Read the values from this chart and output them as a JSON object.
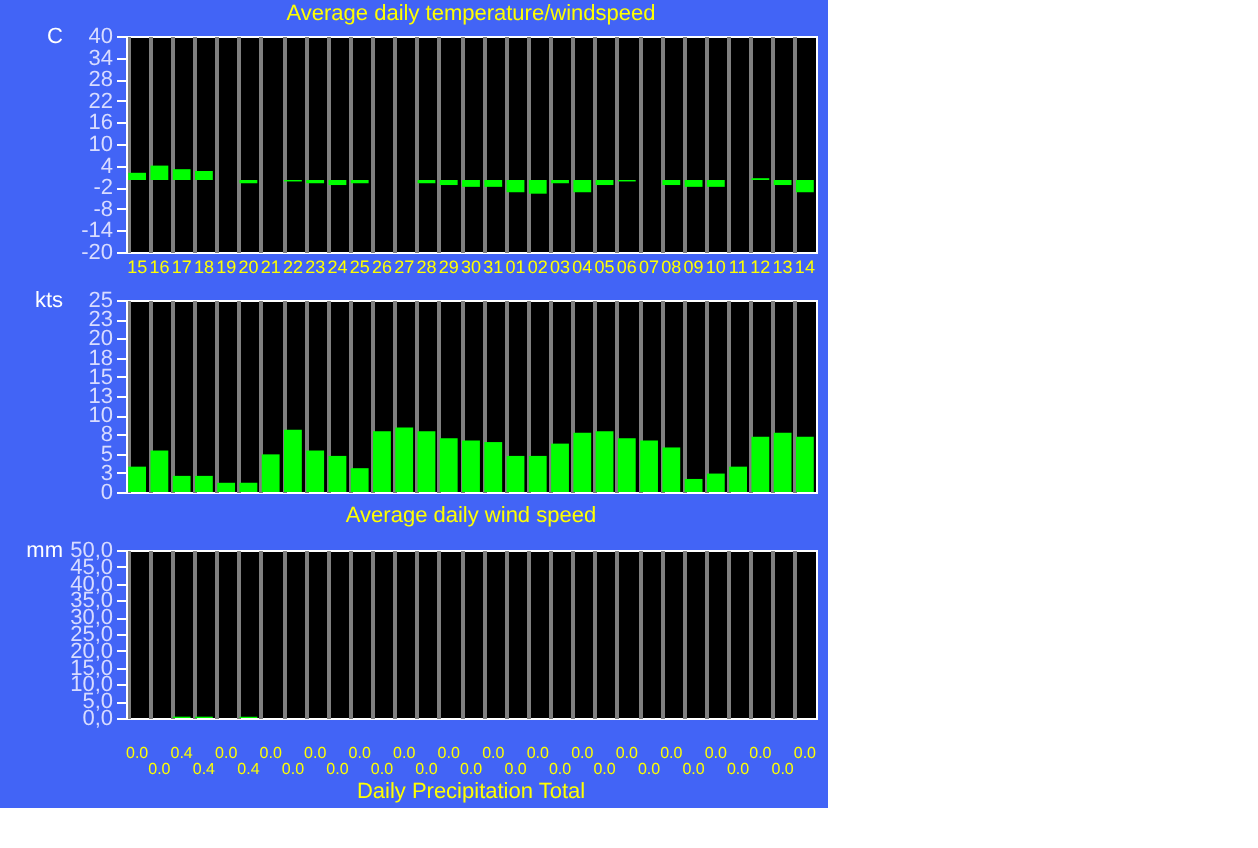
{
  "chart_data": [
    {
      "type": "bar",
      "title": "Average daily temperature/windspeed",
      "ylabel": "C",
      "categories": [
        "15",
        "16",
        "17",
        "18",
        "19",
        "20",
        "21",
        "22",
        "23",
        "24",
        "25",
        "26",
        "27",
        "28",
        "29",
        "30",
        "31",
        "01",
        "02",
        "03",
        "04",
        "05",
        "06",
        "07",
        "08",
        "09",
        "10",
        "11",
        "12",
        "13",
        "14"
      ],
      "values": [
        2.0,
        4.0,
        3.0,
        2.5,
        0,
        -0.9,
        0,
        -0.4,
        -0.9,
        -1.4,
        -0.9,
        0,
        0,
        -0.9,
        -1.4,
        -1.9,
        -1.9,
        -3.4,
        -3.8,
        -0.9,
        -3.4,
        -1.4,
        -0.4,
        0,
        -1.4,
        -1.9,
        -1.9,
        0,
        0.5,
        -1.4,
        -3.4
      ],
      "color": "#00ff00",
      "ylim": [
        -20,
        40
      ],
      "yticks": [
        -20,
        -14,
        -8,
        -2,
        4,
        10,
        16,
        22,
        28,
        34,
        40
      ],
      "grid": "x"
    },
    {
      "type": "bar",
      "title": "Average daily wind speed",
      "ylabel": "kts",
      "categories": [
        "15",
        "16",
        "17",
        "18",
        "19",
        "20",
        "21",
        "22",
        "23",
        "24",
        "25",
        "26",
        "27",
        "28",
        "29",
        "30",
        "31",
        "01",
        "02",
        "03",
        "04",
        "05",
        "06",
        "07",
        "08",
        "09",
        "10",
        "11",
        "12",
        "13",
        "14"
      ],
      "values": [
        3.3,
        5.4,
        2.1,
        2.1,
        1.2,
        1.2,
        4.9,
        8.1,
        5.4,
        4.7,
        3.1,
        7.9,
        8.4,
        7.9,
        7.0,
        6.7,
        6.5,
        4.7,
        4.7,
        6.3,
        7.7,
        7.9,
        7.0,
        6.7,
        5.8,
        1.7,
        2.4,
        3.3,
        7.2,
        7.7,
        7.2
      ],
      "color": "#00ff00",
      "ylim": [
        0,
        25
      ],
      "yticks": [
        0,
        {
          "value": 2.5,
          "label": "3"
        },
        5,
        {
          "value": 7.5,
          "label": "8"
        },
        10,
        {
          "value": 12.5,
          "label": "13"
        },
        15,
        {
          "value": 17.5,
          "label": "18"
        },
        20,
        {
          "value": 22.5,
          "label": "23"
        },
        25
      ],
      "grid": "x",
      "tick_labels": "y"
    },
    {
      "type": "bar",
      "title": "Daily Precipitation Total",
      "ylabel": "mm",
      "categories": [
        "15",
        "16",
        "17",
        "18",
        "19",
        "20",
        "21",
        "22",
        "23",
        "24",
        "25",
        "26",
        "27",
        "28",
        "29",
        "30",
        "31",
        "01",
        "02",
        "03",
        "04",
        "05",
        "06",
        "07",
        "08",
        "09",
        "10",
        "11",
        "12",
        "13",
        "14"
      ],
      "values": [
        0,
        0,
        0.4,
        0.4,
        0,
        0.4,
        0,
        0,
        0,
        0,
        0,
        0,
        0,
        0,
        0,
        0,
        0,
        0,
        0,
        0,
        0,
        0,
        0,
        0,
        0,
        0,
        0,
        0,
        0,
        0,
        0
      ],
      "value_labels": [
        "0.0",
        "0.0",
        "0.4",
        "0.4",
        "0.0",
        "0.4",
        "0.0",
        "0.0",
        "0.0",
        "0.0",
        "0.0",
        "0.0",
        "0.0",
        "0.0",
        "0.0",
        "0.0",
        "0.0",
        "0.0",
        "0.0",
        "0.0",
        "0.0",
        "0.0",
        "0.0",
        "0.0",
        "0.0",
        "0.0",
        "0.0",
        "0.0",
        "0.0",
        "0.0",
        "0.0"
      ],
      "color": "#00ff00",
      "ylim": [
        0,
        50
      ],
      "yticks": [
        {
          "value": 0,
          "label": "0,0"
        },
        {
          "value": 5,
          "label": "5,0"
        },
        {
          "value": 10,
          "label": "10,0"
        },
        {
          "value": 15,
          "label": "15,0"
        },
        {
          "value": 20,
          "label": "20,0"
        },
        {
          "value": 25,
          "label": "25,0"
        },
        {
          "value": 30,
          "label": "30,0"
        },
        {
          "value": 35,
          "label": "35,0"
        },
        {
          "value": 40,
          "label": "40,0"
        },
        {
          "value": 45,
          "label": "45,0"
        },
        {
          "value": 50,
          "label": "50,0"
        }
      ],
      "grid": "x",
      "tick_labels": "y"
    }
  ]
}
